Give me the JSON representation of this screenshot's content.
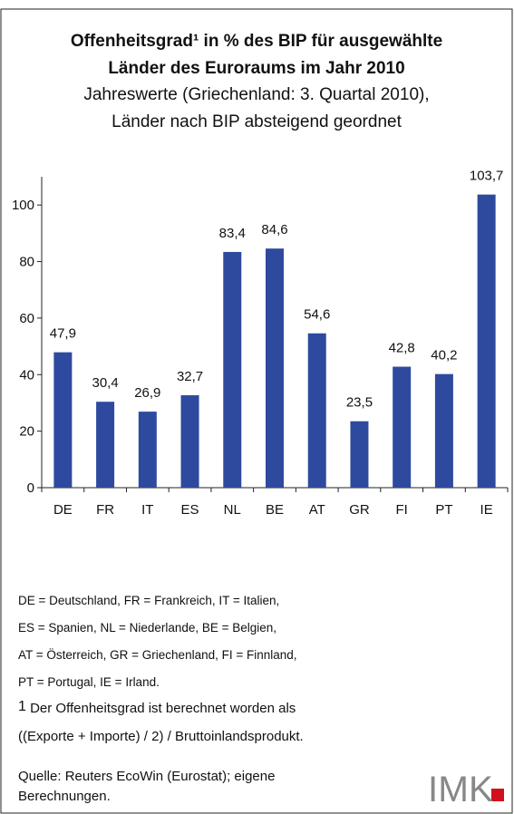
{
  "chart_data": {
    "type": "bar",
    "title": [
      "Offenheitsgrad¹ in % des BIP für ausgewählte",
      "Länder des Euroraums im Jahr 2010"
    ],
    "subtitle": [
      "Jahreswerte (Griechenland: 3. Quartal 2010),",
      "Länder nach BIP absteigend geordnet"
    ],
    "categories": [
      "DE",
      "FR",
      "IT",
      "ES",
      "NL",
      "BE",
      "AT",
      "GR",
      "FI",
      "PT",
      "IE"
    ],
    "values": [
      47.9,
      30.4,
      26.9,
      32.7,
      83.4,
      84.6,
      54.6,
      23.5,
      42.8,
      40.2,
      103.7
    ],
    "value_labels": [
      "47,9",
      "30,4",
      "26,9",
      "32,7",
      "83,4",
      "84,6",
      "54,6",
      "23,5",
      "42,8",
      "40,2",
      "103,7"
    ],
    "color": "#2e4a9e",
    "ylim": [
      0,
      110
    ],
    "yticks": [
      0,
      20,
      40,
      60,
      80,
      100
    ],
    "notes": [
      "DE = Deutschland, FR = Frankreich, IT = Italien,",
      "ES = Spanien, NL = Niederlande, BE = Belgien,",
      "AT = Österreich, GR = Griechenland, FI = Finnland,",
      "PT = Portugal, IE = Irland."
    ],
    "footnote": {
      "marker": "1",
      "lines": [
        " Der Offenheitsgrad ist berechnet worden als",
        "((Exporte + Importe) / 2) / Bruttoinlandsprodukt."
      ]
    },
    "source": [
      "Quelle: Reuters EcoWin (Eurostat); eigene",
      "Berechnungen."
    ],
    "logo": "IMK"
  }
}
